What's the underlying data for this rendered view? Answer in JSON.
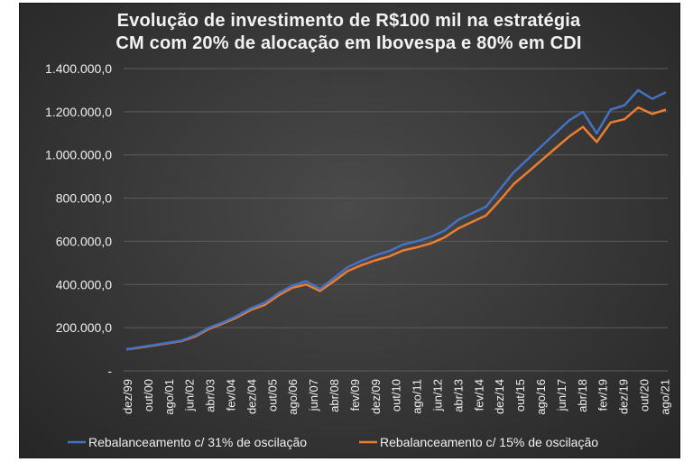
{
  "chart_data": {
    "type": "line",
    "title_line1": "Evolução de investimento de R$100 mil na estratégia",
    "title_line2": "CM com 20% de alocação em Ibovespa e 80% em CDI",
    "xlabel": "",
    "ylabel": "",
    "ylim": [
      0,
      1400000
    ],
    "y_ticks": [
      0,
      200000,
      400000,
      600000,
      800000,
      1000000,
      1200000,
      1400000
    ],
    "y_tick_labels": [
      "-",
      "200.000,0",
      "400.000,0",
      "600.000,0",
      "800.000,0",
      "1.000.000,0",
      "1.200.000,0",
      "1.400.000,0"
    ],
    "x_tick_labels": [
      "dez/99",
      "out/00",
      "ago/01",
      "jun/02",
      "abr/03",
      "fev/04",
      "dez/04",
      "out/05",
      "ago/06",
      "jun/07",
      "abr/08",
      "fev/09",
      "dez/09",
      "out/10",
      "ago/11",
      "jun/12",
      "abr/13",
      "fev/14",
      "dez/14",
      "out/15",
      "ago/16",
      "jun/17",
      "abr/18",
      "fev/19",
      "dez/19",
      "out/20",
      "ago/21"
    ],
    "grid": true,
    "legend_position": "bottom",
    "series": [
      {
        "name": "Rebalanceamento c/ 31% de oscilação",
        "color": "#4472c4",
        "values": [
          100000,
          110000,
          120000,
          130000,
          140000,
          165000,
          200000,
          225000,
          255000,
          290000,
          315000,
          360000,
          395000,
          415000,
          380000,
          430000,
          480000,
          510000,
          535000,
          555000,
          585000,
          600000,
          620000,
          650000,
          700000,
          730000,
          760000,
          840000,
          920000,
          980000,
          1040000,
          1100000,
          1160000,
          1200000,
          1100000,
          1210000,
          1230000,
          1300000,
          1260000,
          1290000
        ]
      },
      {
        "name": "Rebalanceamento c/ 15% de oscilação",
        "color": "#ed7d31",
        "values": [
          100000,
          108000,
          118000,
          128000,
          138000,
          160000,
          195000,
          220000,
          248000,
          282000,
          305000,
          350000,
          385000,
          400000,
          370000,
          415000,
          462000,
          490000,
          512000,
          530000,
          558000,
          572000,
          590000,
          618000,
          660000,
          690000,
          720000,
          790000,
          865000,
          920000,
          975000,
          1030000,
          1085000,
          1130000,
          1060000,
          1150000,
          1165000,
          1220000,
          1190000,
          1210000
        ]
      }
    ]
  }
}
